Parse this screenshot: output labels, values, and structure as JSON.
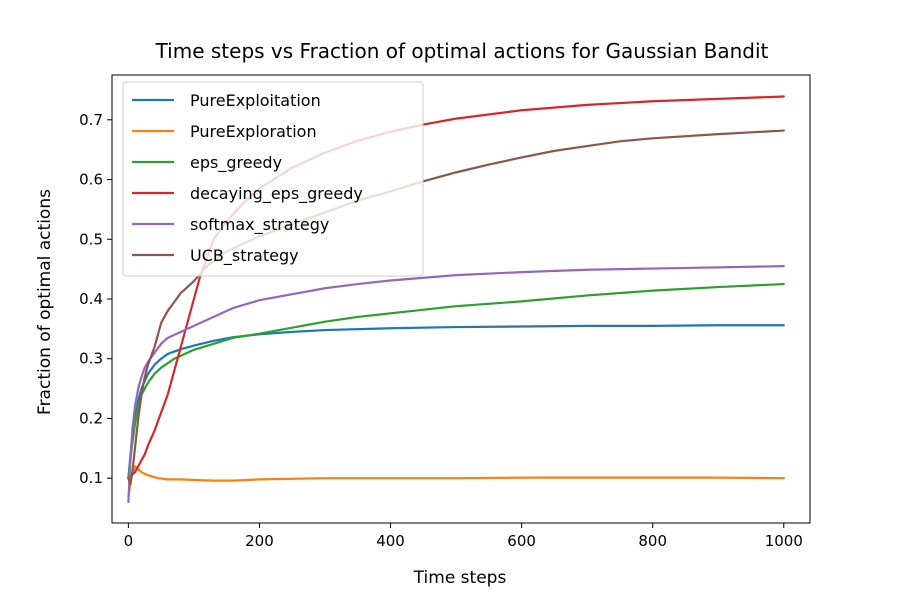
{
  "chart_data": {
    "type": "line",
    "title": "Time steps vs Fraction of optimal actions for Gaussian Bandit",
    "xlabel": "Time steps",
    "ylabel": "Fraction of optimal actions",
    "xlim": [
      -25,
      1040
    ],
    "ylim": [
      0.025,
      0.775
    ],
    "xticks": [
      0,
      200,
      400,
      600,
      800,
      1000
    ],
    "yticks": [
      0.1,
      0.2,
      0.3,
      0.4,
      0.5,
      0.6,
      0.7
    ],
    "xtick_labels": [
      "0",
      "200",
      "400",
      "600",
      "800",
      "1000"
    ],
    "ytick_labels": [
      "0.1",
      "0.2",
      "0.3",
      "0.4",
      "0.5",
      "0.6",
      "0.7"
    ],
    "grid": false,
    "legend_position": "top-left",
    "series": [
      {
        "name": "PureExploitation",
        "color": "#1f77b4",
        "x": [
          0,
          5,
          10,
          15,
          20,
          30,
          40,
          50,
          60,
          80,
          100,
          130,
          160,
          200,
          250,
          300,
          400,
          500,
          600,
          700,
          800,
          900,
          1000
        ],
        "y": [
          0.1,
          0.16,
          0.2,
          0.23,
          0.25,
          0.275,
          0.29,
          0.3,
          0.308,
          0.316,
          0.322,
          0.33,
          0.336,
          0.341,
          0.345,
          0.348,
          0.351,
          0.353,
          0.354,
          0.355,
          0.355,
          0.356,
          0.356
        ]
      },
      {
        "name": "PureExploration",
        "color": "#ff7f0e",
        "x": [
          0,
          3,
          6,
          10,
          15,
          20,
          30,
          45,
          60,
          80,
          100,
          130,
          160,
          200,
          300,
          400,
          500,
          600,
          700,
          800,
          900,
          1000
        ],
        "y": [
          0.07,
          0.09,
          0.11,
          0.12,
          0.115,
          0.11,
          0.105,
          0.1,
          0.098,
          0.098,
          0.097,
          0.096,
          0.096,
          0.098,
          0.1,
          0.1,
          0.1,
          0.101,
          0.101,
          0.101,
          0.101,
          0.1
        ]
      },
      {
        "name": "eps_greedy",
        "color": "#2ca02c",
        "x": [
          0,
          5,
          10,
          15,
          20,
          30,
          40,
          50,
          70,
          100,
          130,
          160,
          200,
          250,
          300,
          350,
          400,
          500,
          600,
          700,
          800,
          900,
          1000
        ],
        "y": [
          0.1,
          0.15,
          0.19,
          0.22,
          0.24,
          0.26,
          0.275,
          0.285,
          0.3,
          0.315,
          0.325,
          0.335,
          0.342,
          0.352,
          0.362,
          0.37,
          0.376,
          0.388,
          0.396,
          0.406,
          0.414,
          0.42,
          0.425
        ]
      },
      {
        "name": "decaying_eps_greedy",
        "color": "#d62728",
        "x": [
          0,
          5,
          10,
          15,
          20,
          25,
          30,
          40,
          50,
          60,
          70,
          80,
          90,
          100,
          110,
          120,
          130,
          150,
          175,
          200,
          250,
          300,
          350,
          400,
          450,
          500,
          600,
          700,
          800,
          900,
          1000
        ],
        "y": [
          0.1,
          0.105,
          0.11,
          0.12,
          0.13,
          0.14,
          0.155,
          0.18,
          0.21,
          0.24,
          0.28,
          0.32,
          0.36,
          0.4,
          0.44,
          0.47,
          0.5,
          0.53,
          0.56,
          0.585,
          0.62,
          0.645,
          0.665,
          0.68,
          0.692,
          0.702,
          0.716,
          0.725,
          0.731,
          0.735,
          0.739
        ]
      },
      {
        "name": "softmax_strategy",
        "color": "#9467bd",
        "x": [
          0,
          3,
          6,
          10,
          15,
          20,
          25,
          30,
          40,
          50,
          60,
          80,
          100,
          130,
          160,
          200,
          250,
          300,
          350,
          400,
          500,
          600,
          700,
          800,
          900,
          1000
        ],
        "y": [
          0.06,
          0.13,
          0.18,
          0.22,
          0.25,
          0.27,
          0.285,
          0.295,
          0.31,
          0.325,
          0.335,
          0.345,
          0.355,
          0.37,
          0.385,
          0.398,
          0.408,
          0.418,
          0.425,
          0.431,
          0.44,
          0.445,
          0.449,
          0.451,
          0.453,
          0.455
        ]
      },
      {
        "name": "UCB_strategy",
        "color": "#8c564b",
        "x": [
          0,
          3,
          6,
          10,
          15,
          20,
          25,
          30,
          40,
          50,
          60,
          70,
          80,
          100,
          120,
          150,
          200,
          250,
          300,
          350,
          400,
          450,
          500,
          550,
          600,
          650,
          700,
          750,
          800,
          900,
          1000
        ],
        "y": [
          0.1,
          0.09,
          0.11,
          0.15,
          0.2,
          0.24,
          0.27,
          0.29,
          0.32,
          0.36,
          0.38,
          0.395,
          0.41,
          0.43,
          0.455,
          0.48,
          0.505,
          0.525,
          0.545,
          0.565,
          0.58,
          0.597,
          0.612,
          0.625,
          0.637,
          0.648,
          0.656,
          0.664,
          0.669,
          0.676,
          0.682
        ]
      }
    ]
  }
}
